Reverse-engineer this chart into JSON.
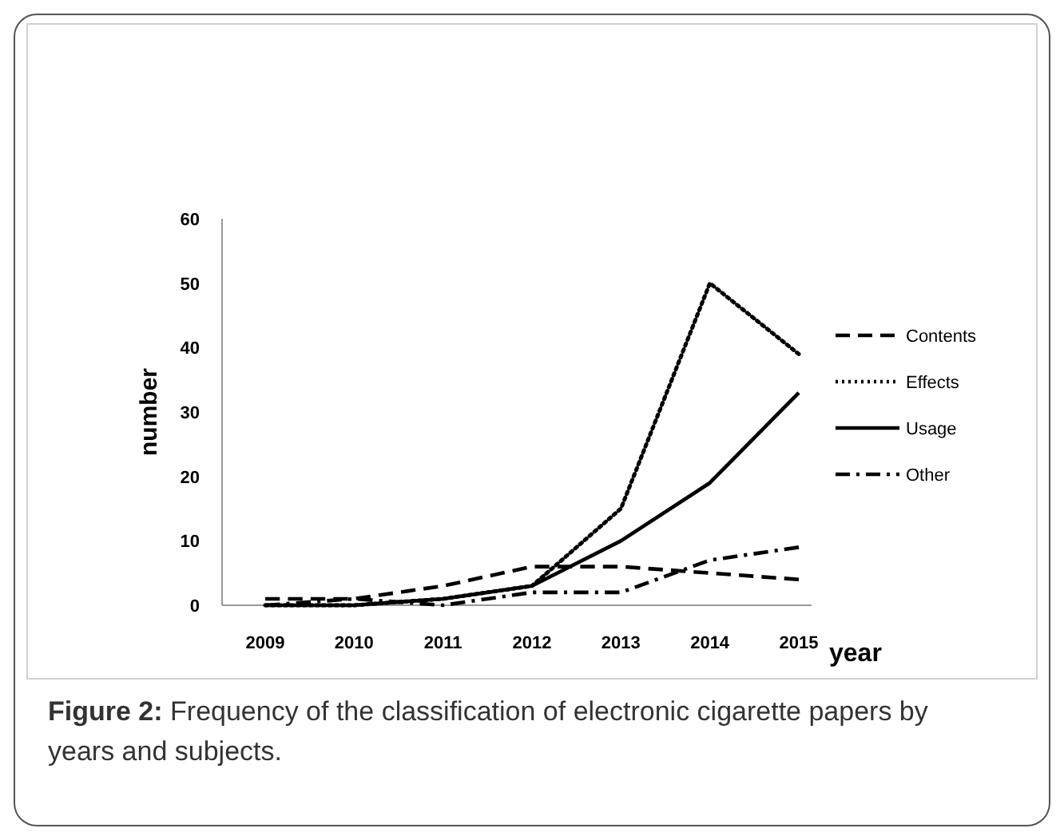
{
  "chart_data": {
    "type": "line",
    "xlabel": "year",
    "ylabel": "number",
    "categories": [
      "2009",
      "2010",
      "2011",
      "2012",
      "2013",
      "2014",
      "2015"
    ],
    "series": [
      {
        "name": "Contents",
        "color": "#000000",
        "line_style": "dashed",
        "values": [
          1,
          1,
          3,
          6,
          6,
          5,
          4
        ]
      },
      {
        "name": "Effects",
        "color": "#000000",
        "line_style": "dotted",
        "values": [
          0,
          0,
          1,
          3,
          15,
          50,
          39
        ]
      },
      {
        "name": "Usage",
        "color": "#000000",
        "line_style": "solid",
        "values": [
          0,
          0,
          1,
          3,
          10,
          19,
          33
        ]
      },
      {
        "name": "Other",
        "color": "#000000",
        "line_style": "dashdot",
        "values": [
          0,
          1,
          0,
          2,
          2,
          7,
          9
        ]
      }
    ],
    "ylim": [
      0,
      60
    ],
    "yticks": [
      0,
      10,
      20,
      30,
      40,
      50,
      60
    ],
    "grid": false,
    "legend": "right",
    "marker": "none",
    "annotations": [
      "Figure 2: Frequency of the classification of electronic cigarette papers by years and subjects."
    ]
  }
}
